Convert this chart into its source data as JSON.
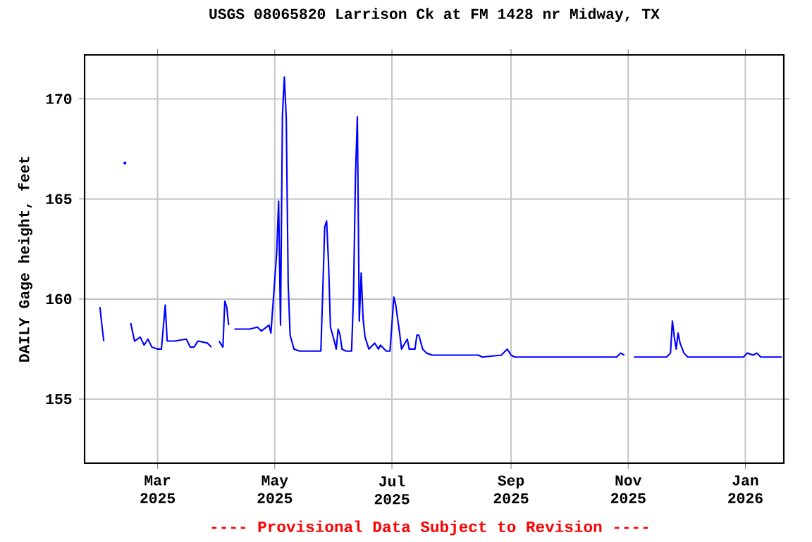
{
  "chart_data": {
    "type": "line",
    "title": "USGS 08065820 Larrison Ck at FM 1428 nr Midway, TX",
    "ylabel": "DAILY Gage height, feet",
    "annotations": [
      "---- Provisional Data Subject to Revision ----"
    ],
    "x": [
      "2025-01-30",
      "2025-01-31",
      "2025-02-01",
      "2025-02-02",
      "2025-02-11",
      "2025-02-12",
      "2025-02-13",
      "2025-02-15",
      "2025-02-17",
      "2025-02-20",
      "2025-02-22",
      "2025-02-24",
      "2025-02-26",
      "2025-03-01",
      "2025-03-03",
      "2025-03-05",
      "2025-03-06",
      "2025-03-10",
      "2025-03-16",
      "2025-03-18",
      "2025-03-20",
      "2025-03-22",
      "2025-03-27",
      "2025-03-29",
      "2025-03-30",
      "2025-04-02",
      "2025-04-04",
      "2025-04-05",
      "2025-04-06",
      "2025-04-07",
      "2025-04-08",
      "2025-04-10",
      "2025-04-18",
      "2025-04-22",
      "2025-04-24",
      "2025-04-28",
      "2025-04-29",
      "2025-05-02",
      "2025-05-03",
      "2025-05-04",
      "2025-05-05",
      "2025-05-06",
      "2025-05-07",
      "2025-05-08",
      "2025-05-09",
      "2025-05-11",
      "2025-05-14",
      "2025-05-25",
      "2025-05-26",
      "2025-05-27",
      "2025-05-28",
      "2025-05-29",
      "2025-05-30",
      "2025-06-01",
      "2025-06-02",
      "2025-06-03",
      "2025-06-04",
      "2025-06-05",
      "2025-06-07",
      "2025-06-10",
      "2025-06-11",
      "2025-06-12",
      "2025-06-13",
      "2025-06-14",
      "2025-06-15",
      "2025-06-16",
      "2025-06-17",
      "2025-06-19",
      "2025-06-22",
      "2025-06-24",
      "2025-06-25",
      "2025-06-28",
      "2025-06-30",
      "2025-07-02",
      "2025-07-03",
      "2025-07-05",
      "2025-07-06",
      "2025-07-09",
      "2025-07-10",
      "2025-07-13",
      "2025-07-14",
      "2025-07-15",
      "2025-07-17",
      "2025-07-19",
      "2025-07-22",
      "2025-08-15",
      "2025-08-17",
      "2025-08-27",
      "2025-08-30",
      "2025-09-01",
      "2025-09-03",
      "2025-10-26",
      "2025-10-28",
      "2025-10-30",
      "2025-11-01",
      "2025-11-04",
      "2025-11-21",
      "2025-11-23",
      "2025-11-24",
      "2025-11-25",
      "2025-11-26",
      "2025-11-27",
      "2025-11-28",
      "2025-11-30",
      "2025-12-02",
      "2025-12-31",
      "2026-01-02",
      "2026-01-05",
      "2026-01-07",
      "2026-01-09",
      "2026-01-20"
    ],
    "series": [
      {
        "color": "#0000ff",
        "values": [
          159.6,
          158.7,
          157.9,
          null,
          null,
          166.8,
          null,
          158.8,
          157.9,
          158.1,
          157.7,
          158.0,
          157.6,
          157.5,
          157.5,
          159.7,
          157.9,
          157.9,
          158.0,
          157.6,
          157.6,
          157.9,
          157.8,
          157.6,
          null,
          157.9,
          157.6,
          159.9,
          159.6,
          158.7,
          null,
          158.5,
          158.5,
          158.6,
          158.4,
          158.7,
          158.3,
          162.3,
          164.9,
          158.7,
          169.2,
          171.1,
          169.0,
          160.7,
          158.2,
          157.5,
          157.4,
          157.4,
          160.4,
          163.6,
          163.9,
          161.8,
          158.6,
          157.9,
          157.5,
          158.5,
          158.2,
          157.5,
          157.4,
          157.4,
          160.2,
          166.1,
          169.1,
          158.9,
          161.3,
          159.0,
          158.1,
          157.5,
          157.8,
          157.5,
          157.7,
          157.4,
          157.4,
          160.1,
          159.7,
          158.3,
          157.5,
          158.0,
          157.5,
          157.5,
          158.2,
          158.2,
          157.5,
          157.3,
          157.2,
          157.2,
          157.1,
          157.2,
          157.5,
          157.2,
          157.1,
          157.1,
          157.3,
          157.2,
          null,
          157.1,
          157.1,
          157.3,
          158.9,
          158.1,
          157.5,
          158.3,
          157.8,
          157.3,
          157.1,
          157.1,
          157.3,
          157.2,
          157.3,
          157.1,
          157.1
        ]
      }
    ],
    "xlim": [
      "2025-01-22",
      "2026-01-21"
    ],
    "xticks": [
      {
        "value": "2025-03-01",
        "label": "Mar 2025"
      },
      {
        "value": "2025-05-01",
        "label": "May 2025"
      },
      {
        "value": "2025-07-01",
        "label": "Jul 2025"
      },
      {
        "value": "2025-09-01",
        "label": "Sep 2025"
      },
      {
        "value": "2025-11-01",
        "label": "Nov 2025"
      },
      {
        "value": "2026-01-01",
        "label": "Jan 2026"
      }
    ],
    "ylim": [
      151.8,
      172.2
    ],
    "yticks": [
      155,
      160,
      165,
      170
    ],
    "grid": true,
    "marker": "none",
    "line_style": "solid"
  }
}
